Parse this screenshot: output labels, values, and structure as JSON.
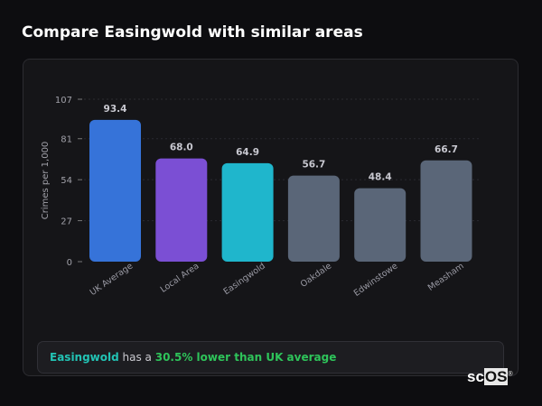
{
  "title": "Compare Easingwold with similar areas",
  "chart_data": {
    "type": "bar",
    "title": "",
    "xlabel": "",
    "ylabel": "Crimes per 1,000",
    "ylim": [
      0,
      107
    ],
    "yticks": [
      0,
      27,
      54,
      81,
      107
    ],
    "categories": [
      "UK Average",
      "Local Area",
      "Easingwold",
      "Oakdale",
      "Edwinstowe",
      "Measham"
    ],
    "values": [
      93.4,
      68.0,
      64.9,
      56.7,
      48.4,
      66.7
    ],
    "value_labels": [
      "93.4",
      "68.0",
      "64.9",
      "56.7",
      "48.4",
      "66.7"
    ],
    "colors": [
      "#3673d9",
      "#7b4fd4",
      "#1fb6cc",
      "#5a6678",
      "#5a6678",
      "#5a6678"
    ],
    "grid": true
  },
  "summary": {
    "area": "Easingwold",
    "middle": " has a ",
    "comparison": "30.5% lower than UK average",
    "area_color": "#22c3b4",
    "comparison_color": "#2ec45a"
  },
  "logo": {
    "text_a": "sc",
    "text_b": "OS",
    "mark": "®"
  }
}
